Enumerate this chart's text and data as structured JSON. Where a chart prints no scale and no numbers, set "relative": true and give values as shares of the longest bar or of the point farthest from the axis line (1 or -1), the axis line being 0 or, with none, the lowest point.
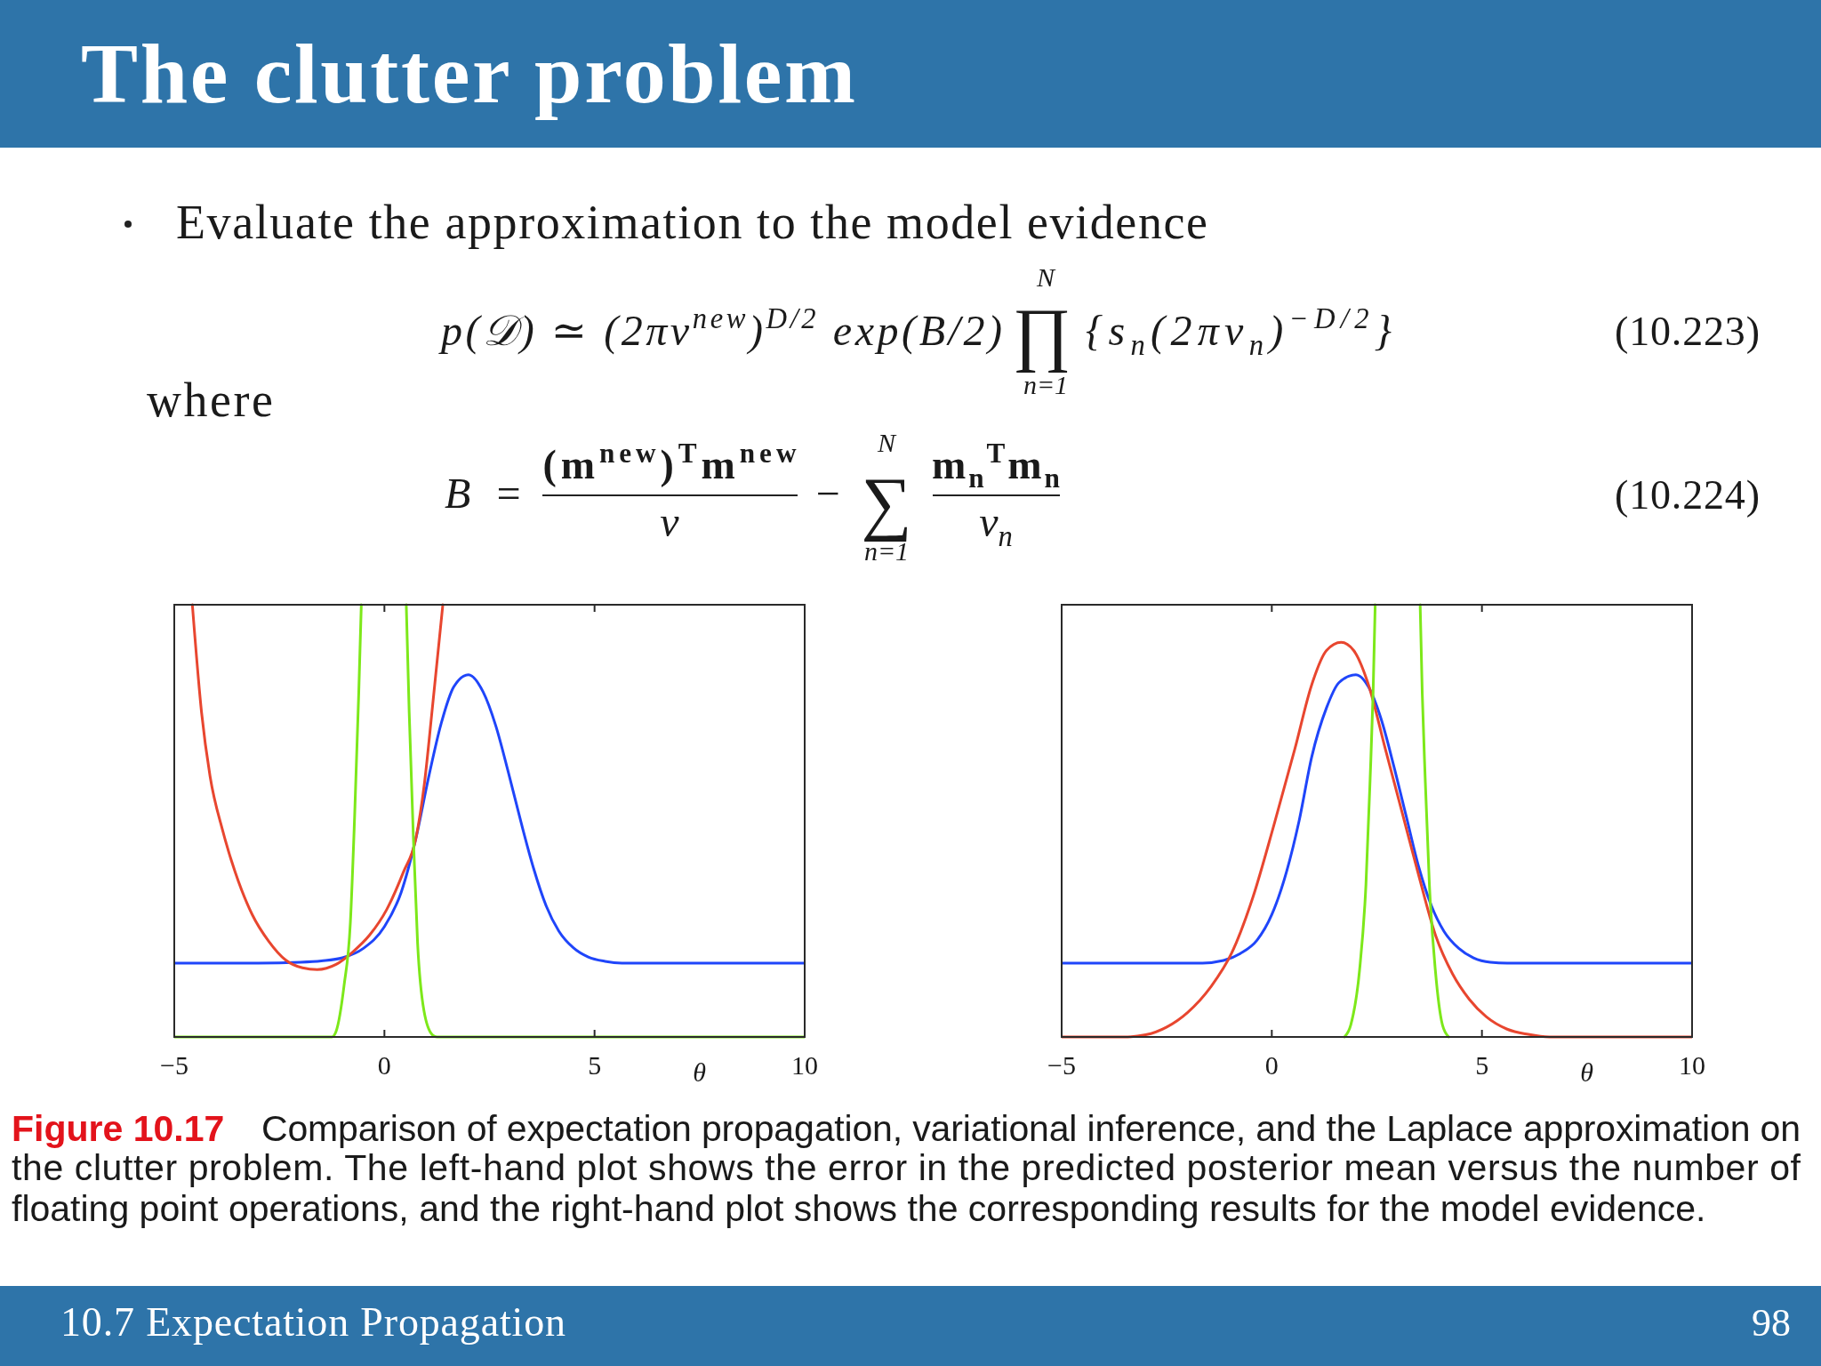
{
  "chart_data": [
    {
      "type": "other",
      "title": "The clutter problem",
      "annotations": [
        "Evaluate the approximation to the model evidence",
        "where",
        "p(𝒟) ≃ (2πv$^{new}$)$^{D/2}$ exp(B/2)",
        "∏",
        "N",
        "n=1",
        "{s$_{n}$(2πv$_{n}$)$^{−D/2}$}",
        "(10.223)",
        "B =",
        "(m$^{new}$)$^{T}$m$^{new}$",
        "v",
        "−",
        "∑",
        "N",
        "n=1",
        "m$_{n}$$^{T}$m$_{n}$",
        "v$_{n}$",
        "(10.224)",
        "Figure 10.17",
        "Comparison of expectation propagation, variational inference, and the Laplace approximation on",
        "the clutter problem. The left-hand plot shows the error in the predicted posterior mean versus the number of",
        "floating point operations, and the right-hand plot shows the corresponding results for the model evidence.",
        "10.7 Expectation Propagation",
        "98"
      ]
    },
    {
      "type": "line",
      "relative": true,
      "xlabel": "θ",
      "xlim": [
        -5,
        10
      ],
      "xticks": [
        {
          "value": -5,
          "label": "−5"
        },
        0,
        5,
        10
      ],
      "series": [
        {
          "color": "#1f45fa",
          "x": [
            -5,
            -3,
            -2,
            -1.5,
            -1,
            -0.5,
            0,
            0.4,
            0.75,
            1.05,
            1.35,
            1.65,
            2,
            2.35,
            2.65,
            2.95,
            3.25,
            3.55,
            3.85,
            4.15,
            4.5,
            4.85,
            5.25,
            5.65,
            7,
            10
          ],
          "values": [
            0.171,
            0.171,
            0.173,
            0.176,
            0.183,
            0.205,
            0.255,
            0.335,
            0.46,
            0.6,
            0.725,
            0.81,
            0.838,
            0.798,
            0.72,
            0.612,
            0.497,
            0.39,
            0.303,
            0.245,
            0.206,
            0.185,
            0.175,
            0.171,
            0.171,
            0.171
          ]
        },
        {
          "color": "#e8462f",
          "x": [
            -4.57,
            -4.35,
            -4.15,
            -3.85,
            -3.55,
            -3.15,
            -2.75,
            -2.35,
            -1.95,
            -1.6,
            -1.15,
            -0.75,
            -0.35,
            0.05,
            0.45,
            0.75,
            0.95,
            1.15,
            1.39
          ],
          "values": [
            1,
            0.75,
            0.604,
            0.478,
            0.381,
            0.284,
            0.221,
            0.178,
            0.16,
            0.156,
            0.168,
            0.197,
            0.236,
            0.294,
            0.381,
            0.46,
            0.585,
            0.77,
            1
          ]
        },
        {
          "color": "#7de81a",
          "x": [
            -5,
            -1.25,
            -1.15,
            -0.96,
            -0.81,
            -0.71,
            -0.61,
            -0.55,
            0,
            0.52,
            0.59,
            0.69,
            0.79,
            0.94,
            1.14,
            1.25,
            10
          ],
          "values": [
            0,
            0,
            0.013,
            0.119,
            0.265,
            0.507,
            0.798,
            1,
            null,
            1,
            0.75,
            0.459,
            0.216,
            0.061,
            0.005,
            0,
            0
          ]
        }
      ]
    },
    {
      "type": "line",
      "relative": true,
      "xlabel": "θ",
      "xlim": [
        -5,
        10
      ],
      "xticks": [
        {
          "value": -5,
          "label": "−5"
        },
        0,
        5,
        10
      ],
      "series": [
        {
          "color": "#1f45fa",
          "x": [
            -5,
            -1.65,
            -1.15,
            -0.75,
            -0.35,
            0,
            0.35,
            0.65,
            0.95,
            1.3,
            1.6,
            2,
            2.3,
            2.6,
            2.9,
            3.2,
            3.5,
            3.8,
            4.1,
            4.45,
            4.8,
            5.2,
            5.6,
            10
          ],
          "values": [
            0.171,
            0.171,
            0.177,
            0.193,
            0.224,
            0.283,
            0.382,
            0.5,
            0.648,
            0.761,
            0.82,
            0.838,
            0.81,
            0.736,
            0.628,
            0.51,
            0.392,
            0.303,
            0.244,
            0.205,
            0.183,
            0.173,
            0.171,
            0.171
          ]
        },
        {
          "color": "#e8462f",
          "x": [
            -5,
            -3.5,
            -3,
            -2.5,
            -2,
            -1.45,
            -0.95,
            -0.45,
            0.05,
            0.55,
            0.95,
            1.3,
            1.65,
            1.95,
            2.3,
            2.7,
            3.1,
            3.5,
            3.9,
            4.3,
            4.7,
            5.1,
            5.6,
            6.1,
            6.6,
            10
          ],
          "values": [
            0,
            0,
            0.005,
            0.023,
            0.057,
            0.116,
            0.195,
            0.323,
            0.49,
            0.667,
            0.815,
            0.894,
            0.913,
            0.894,
            0.815,
            0.667,
            0.52,
            0.372,
            0.234,
            0.146,
            0.087,
            0.047,
            0.018,
            0.006,
            0,
            0
          ]
        },
        {
          "color": "#7de81a",
          "x": [
            1.73,
            1.88,
            2.09,
            2.24,
            2.34,
            2.41,
            2.46,
            3,
            3.53,
            3.58,
            3.65,
            3.75,
            3.89,
            4.06,
            4.21
          ],
          "values": [
            0,
            0.028,
            0.156,
            0.352,
            0.598,
            0.795,
            1,
            null,
            1,
            0.795,
            0.598,
            0.352,
            0.156,
            0.028,
            0
          ]
        }
      ]
    }
  ]
}
